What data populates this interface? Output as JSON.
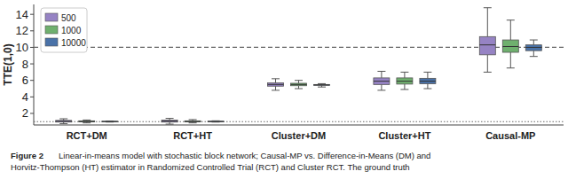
{
  "chart_data": {
    "type": "box",
    "y_label": "TTE(1,0)",
    "categories": [
      "RCT+DM",
      "RCT+HT",
      "Cluster+DM",
      "Cluster+HT",
      "Causal-MP"
    ],
    "series": [
      {
        "name": "500",
        "color": "#9683c4",
        "values": [
          [
            0.75,
            0.95,
            1.05,
            1.15,
            1.35
          ],
          [
            0.7,
            0.95,
            1.05,
            1.18,
            1.4
          ],
          [
            4.8,
            5.3,
            5.5,
            5.7,
            6.2
          ],
          [
            4.8,
            5.5,
            5.9,
            6.3,
            7.1
          ],
          [
            7.0,
            9.1,
            10.3,
            11.3,
            14.8
          ]
        ]
      },
      {
        "name": "1000",
        "color": "#6fb06e",
        "values": [
          [
            0.85,
            0.98,
            1.03,
            1.1,
            1.2
          ],
          [
            0.85,
            0.97,
            1.03,
            1.1,
            1.25
          ],
          [
            5.0,
            5.35,
            5.5,
            5.65,
            6.0
          ],
          [
            4.9,
            5.55,
            5.9,
            6.3,
            7.0
          ],
          [
            7.5,
            9.4,
            10.1,
            10.9,
            13.3
          ]
        ]
      },
      {
        "name": "10000",
        "color": "#4a72a8",
        "values": [
          [
            0.95,
            1.0,
            1.02,
            1.04,
            1.08
          ],
          [
            0.95,
            1.0,
            1.02,
            1.05,
            1.1
          ],
          [
            5.2,
            5.4,
            5.45,
            5.5,
            5.6
          ],
          [
            5.0,
            5.6,
            5.9,
            6.25,
            7.0
          ],
          [
            8.9,
            9.6,
            10.0,
            10.3,
            10.9
          ]
        ]
      }
    ],
    "reference_lines": [
      {
        "value": 10,
        "line_style": "dashed"
      },
      {
        "value": 1,
        "line_style": "dotted"
      }
    ],
    "ylim": [
      0.6,
      15.2
    ],
    "yticks": [
      2,
      4,
      6,
      8,
      10,
      12,
      14
    ],
    "grid": false,
    "legend": "upper-left",
    "caption": {
      "label": "Figure 2",
      "lines": [
        "Linear-in-means model with stochastic block network; Causal-MP vs. Difference-in-Means (DM) and",
        "Horvitz-Thompson (HT) estimator in Randomized Controlled Trial (RCT) and Cluster RCT. The ground truth"
      ]
    }
  }
}
